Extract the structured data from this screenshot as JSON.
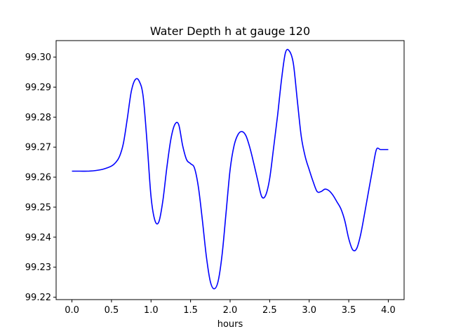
{
  "chart_data": {
    "type": "line",
    "title": "Water Depth h at gauge 120",
    "xlabel": "hours",
    "ylabel": "",
    "xlim": [
      -0.2,
      4.2
    ],
    "ylim": [
      99.2192,
      99.3055
    ],
    "grid": false,
    "xticks": [
      0.0,
      0.5,
      1.0,
      1.5,
      2.0,
      2.5,
      3.0,
      3.5,
      4.0
    ],
    "xtick_labels": [
      "0.0",
      "0.5",
      "1.0",
      "1.5",
      "2.0",
      "2.5",
      "3.0",
      "3.5",
      "4.0"
    ],
    "yticks": [
      99.22,
      99.23,
      99.24,
      99.25,
      99.26,
      99.27,
      99.28,
      99.29,
      99.3
    ],
    "ytick_labels": [
      "99.22",
      "99.23",
      "99.24",
      "99.25",
      "99.26",
      "99.27",
      "99.28",
      "99.29",
      "99.30"
    ],
    "series": [
      {
        "color": "#0000ff",
        "x": [
          0.0,
          0.1,
          0.2,
          0.3,
          0.4,
          0.5,
          0.55,
          0.6,
          0.65,
          0.7,
          0.75,
          0.8,
          0.85,
          0.9,
          0.95,
          1.0,
          1.05,
          1.1,
          1.15,
          1.2,
          1.25,
          1.3,
          1.35,
          1.4,
          1.45,
          1.5,
          1.55,
          1.6,
          1.65,
          1.7,
          1.75,
          1.8,
          1.85,
          1.9,
          1.95,
          2.0,
          2.05,
          2.1,
          2.15,
          2.2,
          2.25,
          2.3,
          2.35,
          2.4,
          2.45,
          2.5,
          2.55,
          2.6,
          2.65,
          2.7,
          2.75,
          2.8,
          2.85,
          2.9,
          2.95,
          3.0,
          3.05,
          3.1,
          3.15,
          3.2,
          3.25,
          3.3,
          3.35,
          3.4,
          3.45,
          3.5,
          3.55,
          3.6,
          3.65,
          3.7,
          3.75,
          3.8,
          3.85,
          3.9,
          3.95,
          4.0
        ],
        "y": [
          99.262,
          99.262,
          99.262,
          99.2622,
          99.2627,
          99.2637,
          99.2648,
          99.2668,
          99.2712,
          99.2795,
          99.2885,
          99.2925,
          99.292,
          99.287,
          99.2715,
          99.2535,
          99.2455,
          99.2452,
          99.2522,
          99.2632,
          99.2725,
          99.2775,
          99.2775,
          99.2705,
          99.2658,
          99.2645,
          99.263,
          99.2565,
          99.2455,
          99.2335,
          99.2252,
          99.2228,
          99.2255,
          99.2345,
          99.2485,
          99.2625,
          99.2705,
          99.2742,
          99.2752,
          99.2738,
          99.2698,
          99.2645,
          99.2588,
          99.2535,
          99.254,
          99.2595,
          99.2698,
          99.2805,
          99.2925,
          99.3015,
          99.302,
          99.2978,
          99.2855,
          99.2735,
          99.2668,
          99.2625,
          99.2585,
          99.2552,
          99.2552,
          99.256,
          99.2555,
          99.254,
          99.2518,
          99.2495,
          99.2455,
          99.2395,
          99.2358,
          99.2362,
          99.2408,
          99.2478,
          99.2552,
          99.2625,
          99.2692,
          99.2692,
          99.2692,
          99.2692
        ]
      }
    ]
  }
}
